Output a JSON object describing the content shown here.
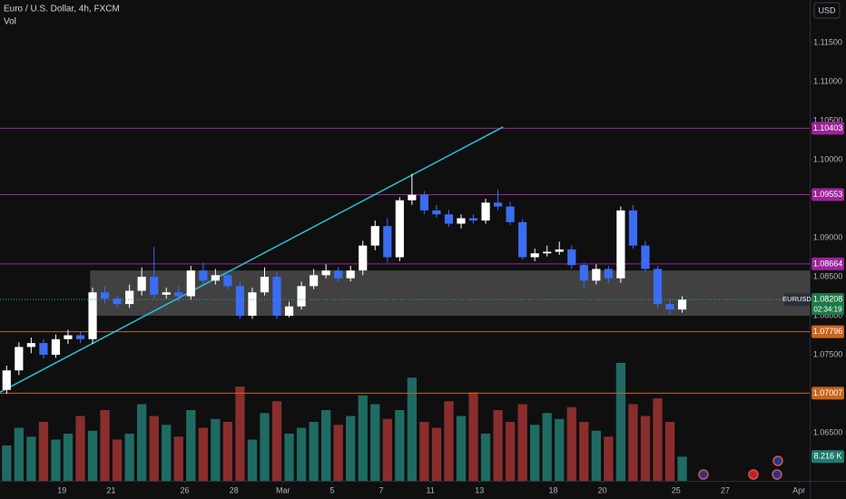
{
  "chart_data": {
    "type": "candlestick",
    "title": "Euro / U.S. Dollar, 4h, FXCM",
    "volume_title": "Vol",
    "currency_button": "USD",
    "symbol": "EURUSD",
    "countdown": "02:34:19",
    "up_color": "#ffffff",
    "down_color": "#3b6cf2",
    "volume_up_color": "#1f6b63",
    "volume_down_color": "#8a2d2d",
    "grid": false,
    "xlim": [
      -2.52,
      30.44
    ],
    "xticks": [
      {
        "value": 0,
        "label": "19"
      },
      {
        "value": 2,
        "label": "21"
      },
      {
        "value": 5,
        "label": "26"
      },
      {
        "value": 7,
        "label": "28"
      },
      {
        "value": 9,
        "label": "Mar"
      },
      {
        "value": 11,
        "label": "5"
      },
      {
        "value": 13,
        "label": "7"
      },
      {
        "value": 15,
        "label": "11"
      },
      {
        "value": 17,
        "label": "13"
      },
      {
        "value": 20,
        "label": "18"
      },
      {
        "value": 22,
        "label": "20"
      },
      {
        "value": 25,
        "label": "25"
      },
      {
        "value": 27,
        "label": "27"
      },
      {
        "value": 30,
        "label": "Apr"
      }
    ],
    "ylim": [
      1.05884,
      1.12047
    ],
    "yticks": [
      {
        "value": 1.065,
        "label": "1.06500"
      },
      {
        "value": 1.075,
        "label": "1.07500"
      },
      {
        "value": 1.08,
        "label": "1.08000"
      },
      {
        "value": 1.085,
        "label": "1.08500"
      },
      {
        "value": 1.09,
        "label": "1.09000"
      },
      {
        "value": 1.1,
        "label": "1.10000"
      },
      {
        "value": 1.105,
        "label": "1.10500"
      },
      {
        "value": 1.11,
        "label": "1.11000"
      },
      {
        "value": 1.115,
        "label": "1.11500"
      }
    ],
    "vlim": [
      0,
      40
    ],
    "levels": [
      {
        "price": 1.10403,
        "color": "#9c2499"
      },
      {
        "price": 1.09553,
        "color": "#9c2499"
      },
      {
        "price": 1.08664,
        "color": "#9c2499"
      },
      {
        "price": 1.07796,
        "color": "#c8651b"
      },
      {
        "price": 1.07007,
        "color": "#c8651b"
      }
    ],
    "zone": {
      "start": 1.15,
      "top": 1.0858,
      "bottom": 1.08
    },
    "trendline": {
      "x": [
        -2.52,
        17.96
      ],
      "y": [
        1.0702,
        1.1042
      ]
    },
    "x": [
      -2.25,
      -1.75,
      -1.25,
      -0.75,
      -0.25,
      0.25,
      0.75,
      1.25,
      1.75,
      2.25,
      2.75,
      3.25,
      3.75,
      4.25,
      4.75,
      5.25,
      5.75,
      6.25,
      6.75,
      7.25,
      7.75,
      8.25,
      8.75,
      9.25,
      9.75,
      10.25,
      10.75,
      11.25,
      11.75,
      12.25,
      12.75,
      13.25,
      13.75,
      14.25,
      14.75,
      15.25,
      15.75,
      16.25,
      16.75,
      17.25,
      17.75,
      18.25,
      18.75,
      19.25,
      19.75,
      20.25,
      20.75,
      21.25,
      21.75,
      22.25,
      22.75,
      23.25,
      23.75,
      24.25,
      24.75,
      25.25
    ],
    "open": [
      1.0705,
      1.073,
      1.076,
      1.0765,
      1.075,
      1.077,
      1.0775,
      1.077,
      1.083,
      1.0822,
      1.0815,
      1.0832,
      1.085,
      1.0827,
      1.083,
      1.0825,
      1.0858,
      1.0845,
      1.0852,
      1.0838,
      1.08,
      1.083,
      1.085,
      1.08,
      1.0812,
      1.0838,
      1.0852,
      1.0858,
      1.0848,
      1.0858,
      1.089,
      1.0915,
      1.0875,
      1.0948,
      1.0955,
      1.0935,
      1.093,
      1.0918,
      1.0925,
      1.0922,
      1.0945,
      1.094,
      1.092,
      1.0875,
      1.088,
      1.0882,
      1.0885,
      1.0865,
      1.0845,
      1.086,
      1.0848,
      1.0935,
      1.089,
      1.086,
      1.0815,
      1.0808
    ],
    "high": [
      1.0736,
      1.0766,
      1.0772,
      1.077,
      1.0776,
      1.0782,
      1.078,
      1.0836,
      1.0838,
      1.0826,
      1.084,
      1.0862,
      1.0888,
      1.0836,
      1.0838,
      1.0864,
      1.0868,
      1.086,
      1.0858,
      1.0844,
      1.0836,
      1.0862,
      1.0856,
      1.0818,
      1.0844,
      1.086,
      1.0866,
      1.0862,
      1.0864,
      1.0896,
      1.0922,
      1.0925,
      1.0952,
      1.0982,
      1.096,
      1.0942,
      1.0936,
      1.093,
      1.093,
      1.095,
      1.0962,
      1.0946,
      1.0924,
      1.0886,
      1.089,
      1.0895,
      1.089,
      1.0868,
      1.0866,
      1.0864,
      1.094,
      1.0942,
      1.0896,
      1.0864,
      1.0822,
      1.0825
    ],
    "low": [
      1.07,
      1.0724,
      1.0752,
      1.0745,
      1.0746,
      1.0764,
      1.0765,
      1.0764,
      1.0816,
      1.081,
      1.081,
      1.0826,
      1.0822,
      1.0822,
      1.0818,
      1.082,
      1.084,
      1.084,
      1.0834,
      1.0796,
      1.0796,
      1.0826,
      1.0796,
      1.0798,
      1.0808,
      1.0834,
      1.0848,
      1.0844,
      1.0844,
      1.0852,
      1.0884,
      1.0868,
      1.087,
      1.0942,
      1.093,
      1.0926,
      1.0914,
      1.0912,
      1.0918,
      1.0918,
      1.0935,
      1.0916,
      1.0872,
      1.087,
      1.0876,
      1.0878,
      1.086,
      1.0835,
      1.084,
      1.0842,
      1.0842,
      1.0886,
      1.0856,
      1.081,
      1.0802,
      1.0804
    ],
    "close": [
      1.073,
      1.076,
      1.0765,
      1.075,
      1.077,
      1.0775,
      1.077,
      1.083,
      1.0822,
      1.0815,
      1.0832,
      1.085,
      1.0827,
      1.083,
      1.0825,
      1.0858,
      1.0845,
      1.0852,
      1.0838,
      1.08,
      1.083,
      1.085,
      1.08,
      1.0812,
      1.0838,
      1.0852,
      1.0858,
      1.0848,
      1.0858,
      1.089,
      1.0915,
      1.0875,
      1.0948,
      1.0955,
      1.0935,
      1.093,
      1.0918,
      1.0925,
      1.0922,
      1.0945,
      1.094,
      1.092,
      1.0875,
      1.088,
      1.0882,
      1.0885,
      1.0865,
      1.0845,
      1.086,
      1.0848,
      1.0935,
      1.089,
      1.086,
      1.0815,
      1.0808,
      1.08208
    ],
    "volume": [
      12,
      18,
      15,
      20,
      14,
      16,
      22,
      17,
      24,
      14,
      16,
      26,
      22,
      19,
      15,
      24,
      18,
      21,
      20,
      32,
      14,
      23,
      27,
      16,
      18,
      20,
      24,
      19,
      22,
      29,
      26,
      21,
      24,
      35,
      20,
      18,
      27,
      22,
      30,
      16,
      24,
      20,
      26,
      19,
      23,
      21,
      25,
      20,
      17,
      15,
      40,
      26,
      22,
      28,
      20,
      8.216
    ],
    "last_volume_label": "8.216 K"
  }
}
